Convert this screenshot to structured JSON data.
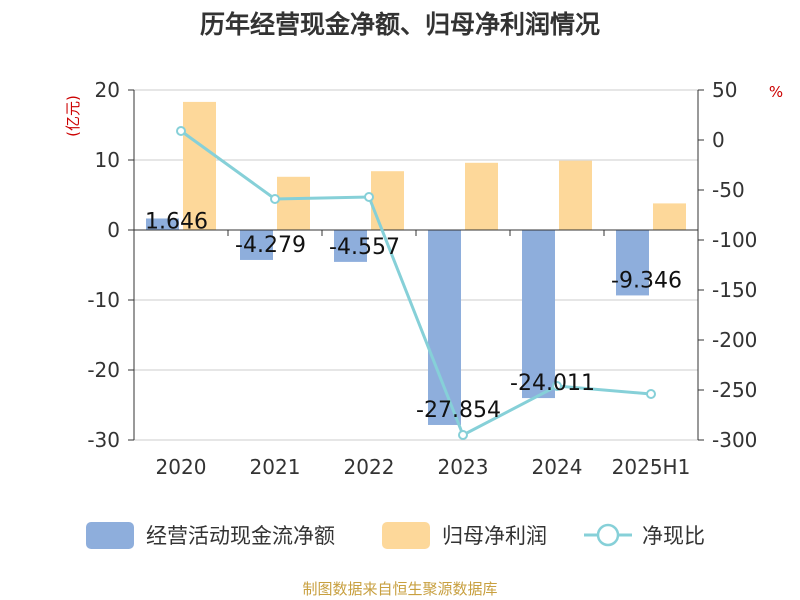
{
  "chart_data": {
    "type": "bar",
    "title": "历年经营现金净额、归母净利润情况",
    "categories": [
      "2020",
      "2021",
      "2022",
      "2023",
      "2024",
      "2025H1"
    ],
    "left_axis": {
      "unit": "(亿元)",
      "ylim": [
        -30,
        20
      ],
      "ticks": [
        20,
        10,
        0,
        -10,
        -20,
        -30
      ]
    },
    "right_axis": {
      "unit": "%",
      "ylim": [
        -300,
        50
      ],
      "ticks": [
        50,
        0,
        -50,
        -100,
        -150,
        -200,
        -250,
        -300
      ]
    },
    "series": [
      {
        "name": "经营活动现金流净额",
        "kind": "bar",
        "axis": "left",
        "color": "#8eaedc",
        "values": [
          1.646,
          -4.279,
          -4.557,
          -27.854,
          -24.011,
          -9.346
        ],
        "labels": [
          "1.646",
          "-4.279",
          "-4.557",
          "-27.854",
          "-24.011",
          "-9.346"
        ]
      },
      {
        "name": "归母净利润",
        "kind": "bar",
        "axis": "left",
        "color": "#fdd89a",
        "values": [
          18.3,
          7.6,
          8.4,
          9.6,
          9.9,
          3.8
        ]
      },
      {
        "name": "净现比",
        "kind": "line",
        "axis": "right",
        "color": "#86d0d8",
        "values": [
          9,
          -59,
          -57,
          -295,
          -246,
          -254
        ]
      }
    ],
    "grid": true,
    "legend_position": "bottom"
  },
  "source_text": "制图数据来自恒生聚源数据库"
}
